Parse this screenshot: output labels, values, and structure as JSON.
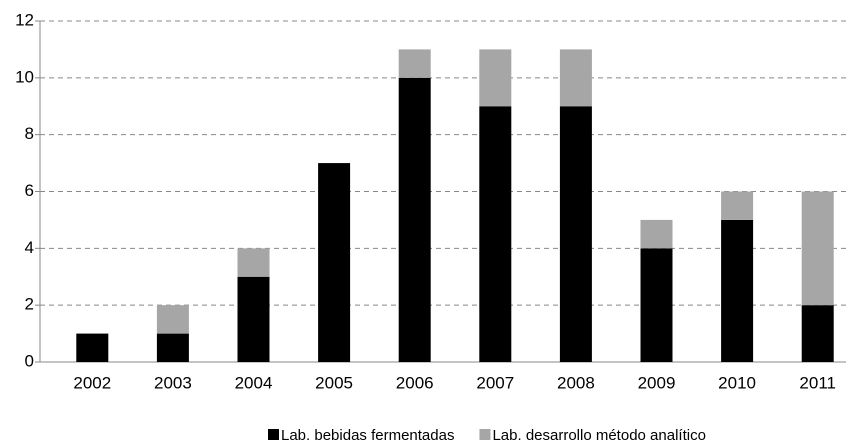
{
  "chart_data": {
    "type": "stacked_bar",
    "categories": [
      "2002",
      "2003",
      "2004",
      "2005",
      "2006",
      "2007",
      "2008",
      "2009",
      "2010",
      "2011"
    ],
    "series": [
      {
        "name": "Lab. bebidas fermentadas",
        "color": "#000000",
        "values": [
          1,
          1,
          3,
          7,
          10,
          9,
          9,
          4,
          5,
          2
        ]
      },
      {
        "name": "Lab. desarrollo método analítico",
        "color": "#a6a6a6",
        "values": [
          0,
          1,
          1,
          0,
          1,
          2,
          2,
          1,
          1,
          4
        ]
      }
    ],
    "ylim": [
      0,
      12
    ],
    "yticks": [
      0,
      2,
      4,
      6,
      8,
      10,
      12
    ],
    "grid": true,
    "legend": "bottom"
  }
}
